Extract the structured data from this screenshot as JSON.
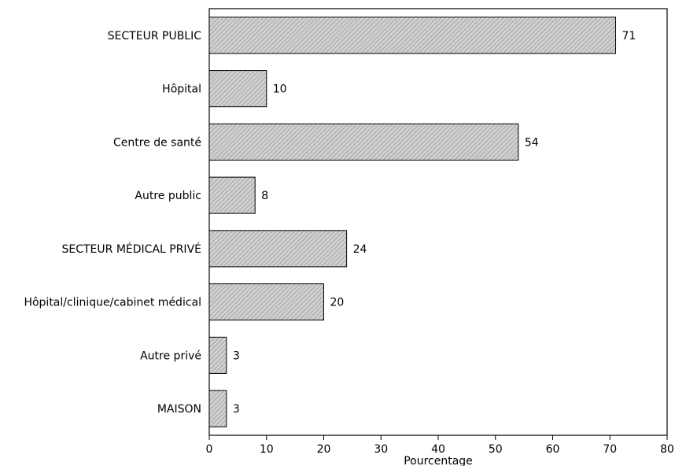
{
  "chart_data": {
    "type": "bar",
    "orientation": "horizontal",
    "categories": [
      "SECTEUR PUBLIC",
      "Hôpital",
      "Centre de santé",
      "Autre public",
      "SECTEUR MÉDICAL PRIVÉ",
      "Hôpital/clinique/cabinet médical",
      "Autre privé",
      "MAISON"
    ],
    "values": [
      71,
      10,
      54,
      8,
      24,
      20,
      3,
      3
    ],
    "value_labels": [
      "71",
      "10",
      "54",
      "8",
      "24",
      "20",
      "3",
      "3"
    ],
    "xlabel": "Pourcentage",
    "ylabel": "",
    "title": "",
    "xlim": [
      0,
      80
    ],
    "xticks": [
      0,
      10,
      20,
      30,
      40,
      50,
      60,
      70,
      80
    ],
    "xtick_labels": [
      "0",
      "10",
      "20",
      "30",
      "40",
      "50",
      "60",
      "70",
      "80"
    ],
    "grid": false,
    "bar_fill": "#c8c8c8",
    "bar_hatch_color": "#8a8a8a",
    "bar_stroke": "#000000"
  }
}
